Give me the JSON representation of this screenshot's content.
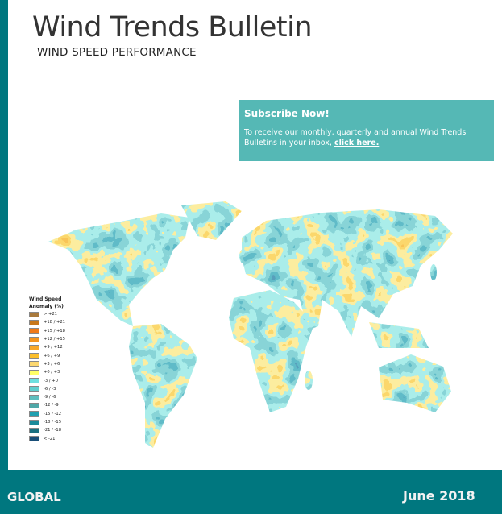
{
  "header": {
    "title": "Wind Trends Bulletin",
    "subtitle": "WIND SPEED PERFORMANCE"
  },
  "subscribe": {
    "heading": "Subscribe Now!",
    "text": "To receive our monthly, quarterly and annual Wind Trends Bulletins in your inbox, ",
    "link": "click here."
  },
  "legend": {
    "title_line1": "Wind Speed",
    "title_line2": "Anomaly (%)",
    "items": [
      {
        "label": "> +21",
        "color": "#a97a3c"
      },
      {
        "label": "+18 / +21",
        "color": "#c8781c"
      },
      {
        "label": "+15 / +18",
        "color": "#f07a1a"
      },
      {
        "label": "+12 / +15",
        "color": "#f5951e"
      },
      {
        "label": "+9 / +12",
        "color": "#f8a82a"
      },
      {
        "label": "+6 / +9",
        "color": "#fbbe2a"
      },
      {
        "label": "+3 / +6",
        "color": "#fcd870"
      },
      {
        "label": "+0 / +3",
        "color": "#ffff66"
      },
      {
        "label": "-3 / +0",
        "color": "#6ee0e0"
      },
      {
        "label": "-6 / -3",
        "color": "#5fcfcf"
      },
      {
        "label": "-9 / -6",
        "color": "#5fbfbf"
      },
      {
        "label": "-12 / -9",
        "color": "#4fa8a8"
      },
      {
        "label": "-15 / -12",
        "color": "#1fa0b0"
      },
      {
        "label": "-18 / -15",
        "color": "#1a8a9a"
      },
      {
        "label": "-21 / -18",
        "color": "#1a7080"
      },
      {
        "label": "< -21",
        "color": "#1a4f78"
      }
    ]
  },
  "footer": {
    "region": "GLOBAL",
    "date": "June 2018"
  }
}
